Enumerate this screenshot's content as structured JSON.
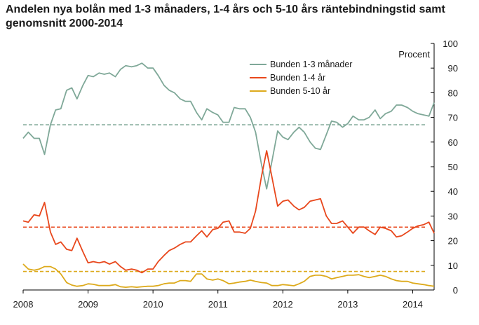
{
  "chart_data": {
    "type": "line",
    "title": "Andelen nya bolån med 1-3 månaders, 1-4 års och 5-10 års räntebindningstid samt genomsnitt 2000-2014",
    "ylabel": "Procent",
    "ylim": [
      0,
      100
    ],
    "yticks": [
      0,
      10,
      20,
      30,
      40,
      50,
      60,
      70,
      80,
      90,
      100
    ],
    "xlim": [
      2008.0,
      2014.33
    ],
    "xticks": [
      {
        "value": 2008,
        "label": "2008"
      },
      {
        "value": 2009,
        "label": "2009"
      },
      {
        "value": 2010,
        "label": "2010"
      },
      {
        "value": 2011,
        "label": "2011"
      },
      {
        "value": 2012,
        "label": "2012"
      },
      {
        "value": 2013,
        "label": "2013"
      },
      {
        "value": 2014,
        "label": "2014"
      }
    ],
    "legend_position": "top-right",
    "series": [
      {
        "name": "Bunden 1-3 månader",
        "color": "#7fa898",
        "average": 67,
        "x": [
          2008.0,
          2008.08,
          2008.17,
          2008.25,
          2008.33,
          2008.42,
          2008.5,
          2008.58,
          2008.67,
          2008.75,
          2008.83,
          2008.92,
          2009.0,
          2009.08,
          2009.17,
          2009.25,
          2009.33,
          2009.42,
          2009.5,
          2009.58,
          2009.67,
          2009.75,
          2009.83,
          2009.92,
          2010.0,
          2010.08,
          2010.17,
          2010.25,
          2010.33,
          2010.42,
          2010.5,
          2010.58,
          2010.67,
          2010.75,
          2010.83,
          2010.92,
          2011.0,
          2011.08,
          2011.17,
          2011.25,
          2011.33,
          2011.42,
          2011.5,
          2011.58,
          2011.67,
          2011.75,
          2011.83,
          2011.92,
          2012.0,
          2012.08,
          2012.17,
          2012.25,
          2012.33,
          2012.42,
          2012.5,
          2012.58,
          2012.67,
          2012.75,
          2012.83,
          2012.92,
          2013.0,
          2013.08,
          2013.17,
          2013.25,
          2013.33,
          2013.42,
          2013.5,
          2013.58,
          2013.67,
          2013.75,
          2013.83,
          2013.92,
          2014.0,
          2014.08,
          2014.17,
          2014.25,
          2014.33
        ],
        "values": [
          61.5,
          64,
          61.5,
          61.5,
          55,
          67,
          73,
          73.5,
          81,
          82,
          77.5,
          83,
          87,
          86.5,
          88,
          87.5,
          88,
          86.5,
          89.5,
          91,
          90.5,
          91,
          92,
          90,
          90,
          87,
          83,
          81,
          80,
          77.5,
          76.5,
          76.5,
          72,
          69,
          73.5,
          72,
          71,
          68,
          68,
          74,
          73.5,
          73.5,
          70,
          64,
          51,
          41,
          52,
          64.5,
          62,
          61,
          64,
          66,
          64,
          60,
          57.5,
          57,
          63,
          68.5,
          68,
          66,
          67.5,
          70.5,
          69,
          69,
          70,
          73,
          69.5,
          71.5,
          72.5,
          75,
          75,
          74,
          72.5,
          71.5,
          71,
          70.5,
          76
        ]
      },
      {
        "name": "Bunden 1-4 år",
        "color": "#e8471c",
        "average": 25.5,
        "x": [
          2008.0,
          2008.08,
          2008.17,
          2008.25,
          2008.33,
          2008.42,
          2008.5,
          2008.58,
          2008.67,
          2008.75,
          2008.83,
          2008.92,
          2009.0,
          2009.08,
          2009.17,
          2009.25,
          2009.33,
          2009.42,
          2009.5,
          2009.58,
          2009.67,
          2009.75,
          2009.83,
          2009.92,
          2010.0,
          2010.08,
          2010.17,
          2010.25,
          2010.33,
          2010.42,
          2010.5,
          2010.58,
          2010.67,
          2010.75,
          2010.83,
          2010.92,
          2011.0,
          2011.08,
          2011.17,
          2011.25,
          2011.33,
          2011.42,
          2011.5,
          2011.58,
          2011.67,
          2011.75,
          2011.83,
          2011.92,
          2012.0,
          2012.08,
          2012.17,
          2012.25,
          2012.33,
          2012.42,
          2012.5,
          2012.58,
          2012.67,
          2012.75,
          2012.83,
          2012.92,
          2013.0,
          2013.08,
          2013.17,
          2013.25,
          2013.33,
          2013.42,
          2013.5,
          2013.58,
          2013.67,
          2013.75,
          2013.83,
          2013.92,
          2014.0,
          2014.08,
          2014.17,
          2014.25,
          2014.33
        ],
        "values": [
          28,
          27.5,
          30.5,
          30,
          35.5,
          23.5,
          18.5,
          19.5,
          16.5,
          16,
          21,
          15.5,
          11,
          11.5,
          11,
          11.5,
          10.5,
          11.5,
          9.5,
          8,
          8.5,
          8,
          7,
          8.5,
          8.5,
          11.5,
          14,
          16,
          17,
          18.5,
          19.5,
          19.5,
          22,
          24,
          21.5,
          24.5,
          25,
          27.5,
          28,
          23.5,
          23.5,
          23,
          25,
          32,
          46,
          56.5,
          46,
          34,
          36,
          36.5,
          34,
          32.5,
          33.5,
          36,
          36.5,
          37,
          30,
          27,
          27,
          28,
          25.5,
          23,
          25.5,
          25.5,
          24,
          22.5,
          25.5,
          25,
          24,
          21.5,
          22,
          23.5,
          25,
          26,
          26.5,
          27.5,
          23
        ]
      },
      {
        "name": "Bunden 5-10 år",
        "color": "#ddaa1c",
        "average": 7.5,
        "x": [
          2008.0,
          2008.08,
          2008.17,
          2008.25,
          2008.33,
          2008.42,
          2008.5,
          2008.58,
          2008.67,
          2008.75,
          2008.83,
          2008.92,
          2009.0,
          2009.08,
          2009.17,
          2009.25,
          2009.33,
          2009.42,
          2009.5,
          2009.58,
          2009.67,
          2009.75,
          2009.83,
          2009.92,
          2010.0,
          2010.08,
          2010.17,
          2010.25,
          2010.33,
          2010.42,
          2010.5,
          2010.58,
          2010.67,
          2010.75,
          2010.83,
          2010.92,
          2011.0,
          2011.08,
          2011.17,
          2011.25,
          2011.33,
          2011.42,
          2011.5,
          2011.58,
          2011.67,
          2011.75,
          2011.83,
          2011.92,
          2012.0,
          2012.08,
          2012.17,
          2012.25,
          2012.33,
          2012.42,
          2012.5,
          2012.58,
          2012.67,
          2012.75,
          2012.83,
          2012.92,
          2013.0,
          2013.08,
          2013.17,
          2013.25,
          2013.33,
          2013.42,
          2013.5,
          2013.58,
          2013.67,
          2013.75,
          2013.83,
          2013.92,
          2014.0,
          2014.08,
          2014.17,
          2014.25,
          2014.33
        ],
        "values": [
          10.5,
          8.5,
          8,
          8.5,
          9.5,
          9.5,
          8.5,
          6.5,
          3,
          2,
          1.5,
          1.8,
          2.5,
          2.3,
          1.8,
          1.8,
          1.8,
          2.2,
          1.3,
          1.1,
          1.3,
          1.1,
          1.3,
          1.5,
          1.5,
          1.8,
          2.5,
          2.8,
          2.8,
          3.8,
          3.8,
          3.5,
          6.5,
          6.5,
          4.5,
          4,
          4.5,
          3.8,
          2.5,
          2.8,
          3.2,
          3.5,
          4,
          3.5,
          3,
          2.8,
          1.8,
          1.8,
          2.2,
          2,
          1.7,
          2.5,
          3.5,
          5.5,
          6,
          6,
          5.5,
          4.5,
          5,
          5.5,
          6,
          6,
          6.2,
          5.5,
          5,
          5.5,
          6,
          5.5,
          4.5,
          3.8,
          3.5,
          3.5,
          2.8,
          2.5,
          2.2,
          1.8,
          1.5
        ]
      }
    ]
  }
}
